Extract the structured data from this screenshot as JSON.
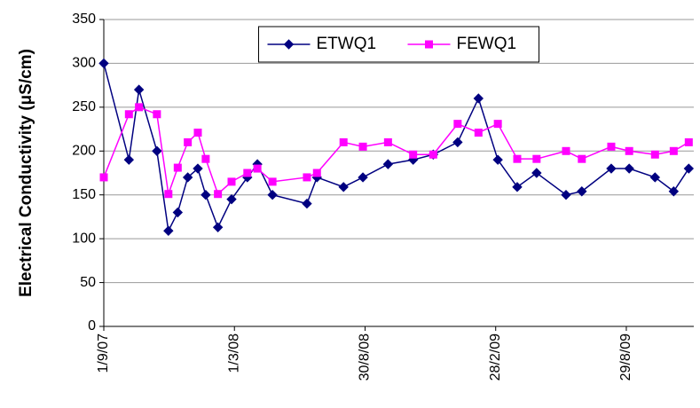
{
  "chart_data": {
    "type": "line",
    "y_label": "Electrical Conductivity (μS/cm)",
    "x": [
      "1/9/07",
      "6/10/07",
      "20/10/07",
      "14/11/07",
      "30/11/07",
      "13/12/07",
      "27/12/07",
      "10/1/08",
      "21/1/08",
      "7/2/08",
      "26/2/08",
      "19/3/08",
      "2/4/08",
      "23/4/08",
      "10/6/08",
      "24/6/08",
      "31/7/08",
      "27/8/08",
      "1/10/08",
      "5/11/08",
      "3/12/08",
      "6/1/09",
      "4/2/09",
      "3/3/09",
      "30/3/09",
      "26/4/09",
      "6/6/09",
      "28/6/09",
      "8/8/09",
      "2/9/09",
      "8/10/09",
      "3/11/09",
      "24/11/09"
    ],
    "series": [
      {
        "name": "ETWQ1",
        "color": "#000080",
        "marker": "diamond",
        "values": [
          300,
          190,
          270,
          200,
          109,
          130,
          170,
          180,
          150,
          113,
          145,
          170,
          185,
          150,
          140,
          170,
          159,
          170,
          185,
          190,
          196,
          210,
          260,
          190,
          159,
          175,
          150,
          154,
          180,
          180,
          170,
          154,
          180
        ]
      },
      {
        "name": "FEWQ1",
        "color": "#ff00ff",
        "marker": "square",
        "values": [
          170,
          242,
          250,
          242,
          151,
          181,
          210,
          221,
          191,
          151,
          165,
          175,
          180,
          165,
          170,
          175,
          210,
          205,
          210,
          196,
          196,
          231,
          221,
          231,
          191,
          191,
          200,
          191,
          205,
          200,
          196,
          200,
          210
        ]
      }
    ],
    "xlim": [
      "1/9/07",
      "1/12/09"
    ],
    "xticks": [
      "1/9/07",
      "1/3/08",
      "30/8/08",
      "28/2/09",
      "29/8/09"
    ],
    "ylim": [
      0,
      350
    ],
    "yticks": [
      0,
      50,
      100,
      150,
      200,
      250,
      300,
      350
    ],
    "grid": true,
    "legend": "top-center"
  }
}
